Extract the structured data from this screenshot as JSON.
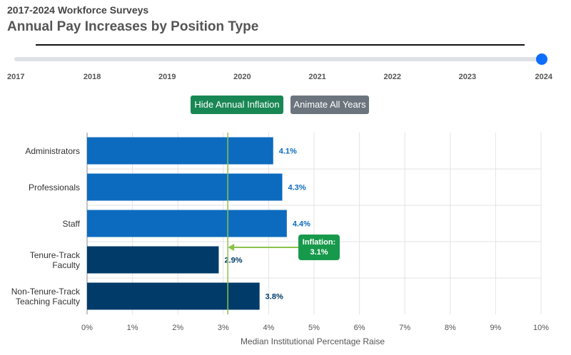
{
  "header": {
    "kicker": "2017-2024 Workforce Surveys",
    "title": "Annual Pay Increases by Position Type"
  },
  "controls": {
    "years": [
      2017,
      2018,
      2019,
      2020,
      2021,
      2022,
      2023,
      2024
    ],
    "selected": 2024,
    "buttons": [
      "Hide Annual Inflation",
      "Animate All Years"
    ]
  },
  "chart_data": {
    "type": "bar",
    "orientation": "horizontal",
    "categories": [
      "Administrators",
      "Professionals",
      "Staff",
      "Tenure-Track Faculty",
      "Non-Tenure-Track Teaching Faculty"
    ],
    "values": [
      4.1,
      4.3,
      4.4,
      2.9,
      3.8
    ],
    "value_labels": [
      "4.1%",
      "4.3%",
      "4.4%",
      "2.9%",
      "3.8%"
    ],
    "colors": [
      "#0c6bbf",
      "#0c6bbf",
      "#0c6bbf",
      "#003b69",
      "#003b69"
    ],
    "xlim": [
      0,
      10
    ],
    "xticks": [
      {
        "value": 0,
        "label": "0%"
      },
      {
        "value": 1,
        "label": "1%"
      },
      {
        "value": 2,
        "label": "2%"
      },
      {
        "value": 3,
        "label": "3%"
      },
      {
        "value": 4,
        "label": "4%"
      },
      {
        "value": 5,
        "label": "5%"
      },
      {
        "value": 6,
        "label": "6%"
      },
      {
        "value": 7,
        "label": "7%"
      },
      {
        "value": 8,
        "label": "8%"
      },
      {
        "value": 9,
        "label": "9%"
      },
      {
        "value": 10,
        "label": "10%"
      }
    ],
    "xlabel": "Median Institutional Percentage Raise",
    "grid": true,
    "inflation": {
      "value": 3.1,
      "label": "Inflation:",
      "value_label": "3.1%",
      "color": "#8bc34a",
      "box_color": "#17994b"
    }
  }
}
